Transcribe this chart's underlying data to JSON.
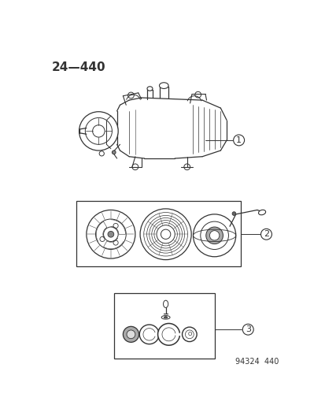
{
  "title_code": "24—440",
  "footer_code": "94324  440",
  "bg": "#ffffff",
  "lc": "#333333",
  "fig_width": 4.14,
  "fig_height": 5.33,
  "dpi": 100,
  "label1": "1",
  "label2": "2",
  "label3": "3"
}
